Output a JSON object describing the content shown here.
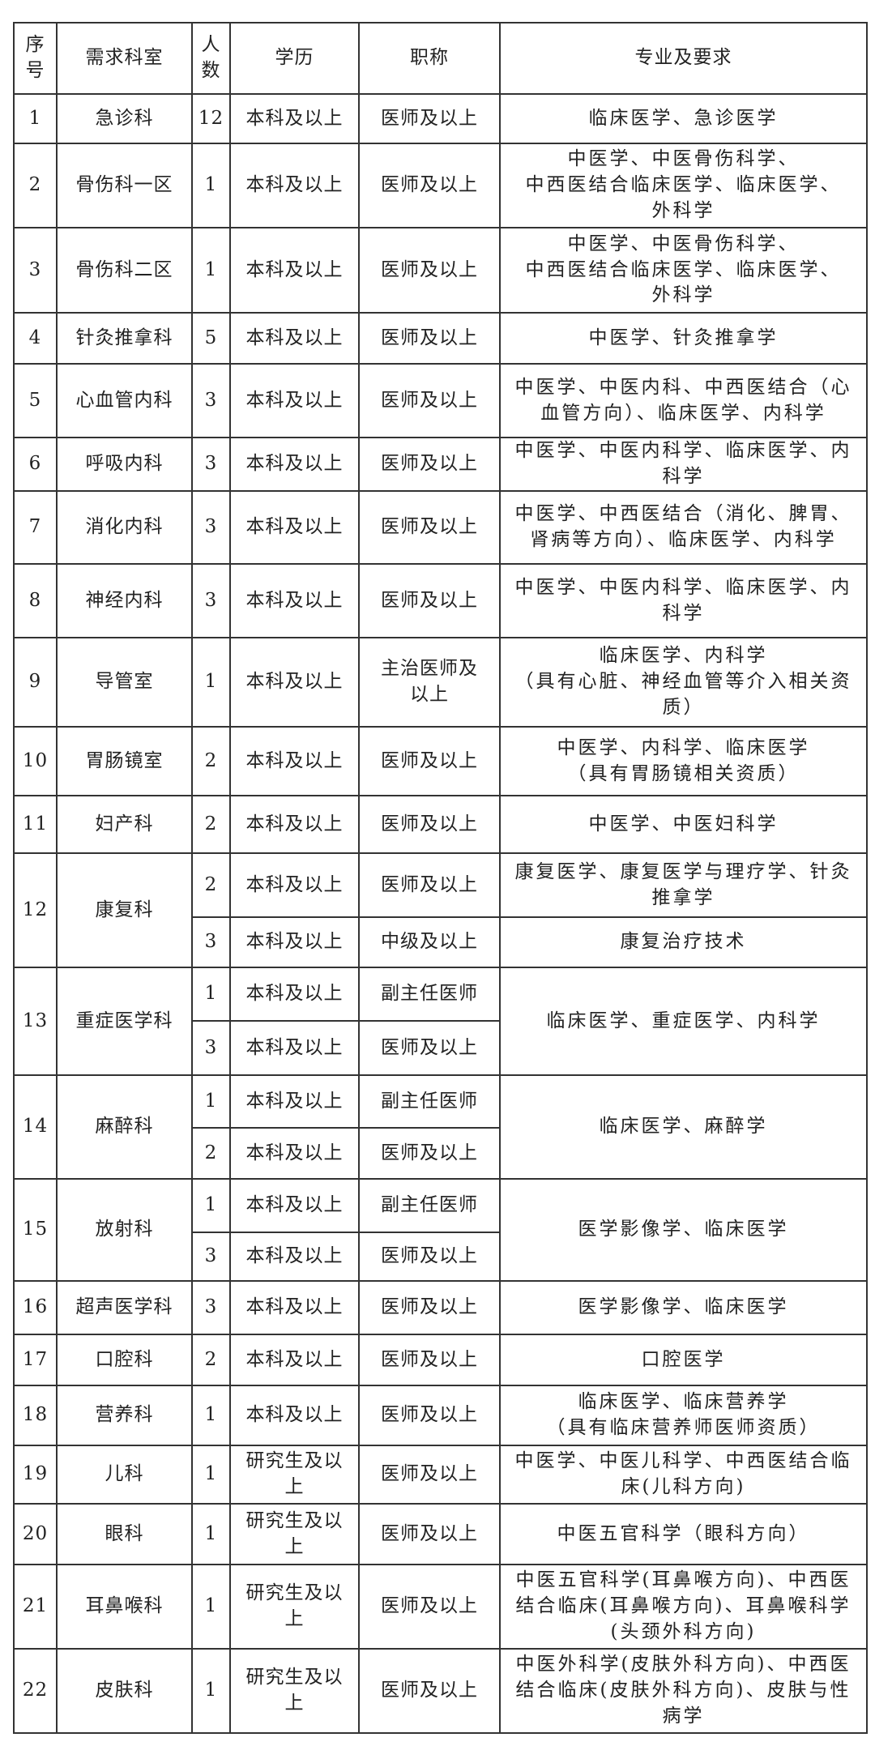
{
  "headers": [
    "序\n号",
    "需求科室",
    "人\n数",
    "学历",
    "职称",
    "专业及要求"
  ],
  "rows": [
    {
      "no": "1",
      "dept": "急诊科",
      "major": "临床医学、急诊医学",
      "subs": [
        {
          "count": "12",
          "edu": "本科及以上",
          "title": "医师及以上"
        }
      ]
    },
    {
      "no": "2",
      "dept": "骨伤科一区",
      "major": "中医学、中医骨伤科学、\n中西医结合临床医学、临床医学、\n外科学",
      "subs": [
        {
          "count": "1",
          "edu": "本科及以上",
          "title": "医师及以上"
        }
      ]
    },
    {
      "no": "3",
      "dept": "骨伤科二区",
      "major": "中医学、中医骨伤科学、\n中西医结合临床医学、临床医学、\n外科学",
      "subs": [
        {
          "count": "1",
          "edu": "本科及以上",
          "title": "医师及以上"
        }
      ]
    },
    {
      "no": "4",
      "dept": "针灸推拿科",
      "major": "中医学、针灸推拿学",
      "subs": [
        {
          "count": "5",
          "edu": "本科及以上",
          "title": "医师及以上"
        }
      ]
    },
    {
      "no": "5",
      "dept": "心血管内科",
      "major": "中医学、中医内科、中西医结合（心\n血管方向）、临床医学、内科学",
      "subs": [
        {
          "count": "3",
          "edu": "本科及以上",
          "title": "医师及以上"
        }
      ]
    },
    {
      "no": "6",
      "dept": "呼吸内科",
      "major": "中医学、中医内科学、临床医学、内\n科学",
      "subs": [
        {
          "count": "3",
          "edu": "本科及以上",
          "title": "医师及以上"
        }
      ]
    },
    {
      "no": "7",
      "dept": "消化内科",
      "major": "中医学、中西医结合（消化、脾胃、\n肾病等方向）、临床医学、内科学",
      "subs": [
        {
          "count": "3",
          "edu": "本科及以上",
          "title": "医师及以上"
        }
      ]
    },
    {
      "no": "8",
      "dept": "神经内科",
      "major": "中医学、中医内科学、临床医学、内\n科学",
      "subs": [
        {
          "count": "3",
          "edu": "本科及以上",
          "title": "医师及以上"
        }
      ]
    },
    {
      "no": "9",
      "dept": "导管室",
      "major": "临床医学、内科学\n（具有心脏、神经血管等介入相关资\n质）",
      "subs": [
        {
          "count": "1",
          "edu": "本科及以上",
          "title": "主治医师及\n以上"
        }
      ]
    },
    {
      "no": "10",
      "dept": "胃肠镜室",
      "major": "中医学、内科学、临床医学\n（具有胃肠镜相关资质）",
      "subs": [
        {
          "count": "2",
          "edu": "本科及以上",
          "title": "医师及以上"
        }
      ]
    },
    {
      "no": "11",
      "dept": "妇产科",
      "major": "中医学、中医妇科学",
      "subs": [
        {
          "count": "2",
          "edu": "本科及以上",
          "title": "医师及以上"
        }
      ]
    },
    {
      "no": "12",
      "dept": "康复科",
      "subs": [
        {
          "count": "2",
          "edu": "本科及以上",
          "title": "医师及以上",
          "major": "康复医学、康复医学与理疗学、针灸\n推拿学"
        },
        {
          "count": "3",
          "edu": "本科及以上",
          "title": "中级及以上",
          "major": "康复治疗技术"
        }
      ]
    },
    {
      "no": "13",
      "dept": "重症医学科",
      "major": "临床医学、重症医学、内科学",
      "subs": [
        {
          "count": "1",
          "edu": "本科及以上",
          "title": "副主任医师"
        },
        {
          "count": "3",
          "edu": "本科及以上",
          "title": "医师及以上"
        }
      ]
    },
    {
      "no": "14",
      "dept": "麻醉科",
      "major": "临床医学、麻醉学",
      "subs": [
        {
          "count": "1",
          "edu": "本科及以上",
          "title": "副主任医师"
        },
        {
          "count": "2",
          "edu": "本科及以上",
          "title": "医师及以上"
        }
      ]
    },
    {
      "no": "15",
      "dept": "放射科",
      "major": "医学影像学、临床医学",
      "subs": [
        {
          "count": "1",
          "edu": "本科及以上",
          "title": "副主任医师"
        },
        {
          "count": "3",
          "edu": "本科及以上",
          "title": "医师及以上"
        }
      ]
    },
    {
      "no": "16",
      "dept": "超声医学科",
      "major": "医学影像学、临床医学",
      "subs": [
        {
          "count": "3",
          "edu": "本科及以上",
          "title": "医师及以上"
        }
      ]
    },
    {
      "no": "17",
      "dept": "口腔科",
      "major": "口腔医学",
      "subs": [
        {
          "count": "2",
          "edu": "本科及以上",
          "title": "医师及以上"
        }
      ]
    },
    {
      "no": "18",
      "dept": "营养科",
      "major": "临床医学、临床营养学\n（具有临床营养师医师资质）",
      "subs": [
        {
          "count": "1",
          "edu": "本科及以上",
          "title": "医师及以上"
        }
      ]
    },
    {
      "no": "19",
      "dept": "儿科",
      "major": "中医学、中医儿科学、中西医结合临\n床(儿科方向)",
      "subs": [
        {
          "count": "1",
          "edu": "研究生及以\n上",
          "title": "医师及以上"
        }
      ]
    },
    {
      "no": "20",
      "dept": "眼科",
      "major": "中医五官科学（眼科方向）",
      "subs": [
        {
          "count": "1",
          "edu": "研究生及以\n上",
          "title": "医师及以上"
        }
      ]
    },
    {
      "no": "21",
      "dept": "耳鼻喉科",
      "major": "中医五官科学(耳鼻喉方向)、中西医\n结合临床(耳鼻喉方向)、耳鼻喉科学\n(头颈外科方向)",
      "subs": [
        {
          "count": "1",
          "edu": "研究生及以\n上",
          "title": "医师及以上"
        }
      ]
    },
    {
      "no": "22",
      "dept": "皮肤科",
      "major": "中医外科学(皮肤外科方向)、中西医\n结合临床(皮肤外科方向)、皮肤与性\n病学",
      "subs": [
        {
          "count": "1",
          "edu": "研究生及以\n上",
          "title": "医师及以上"
        }
      ]
    }
  ]
}
